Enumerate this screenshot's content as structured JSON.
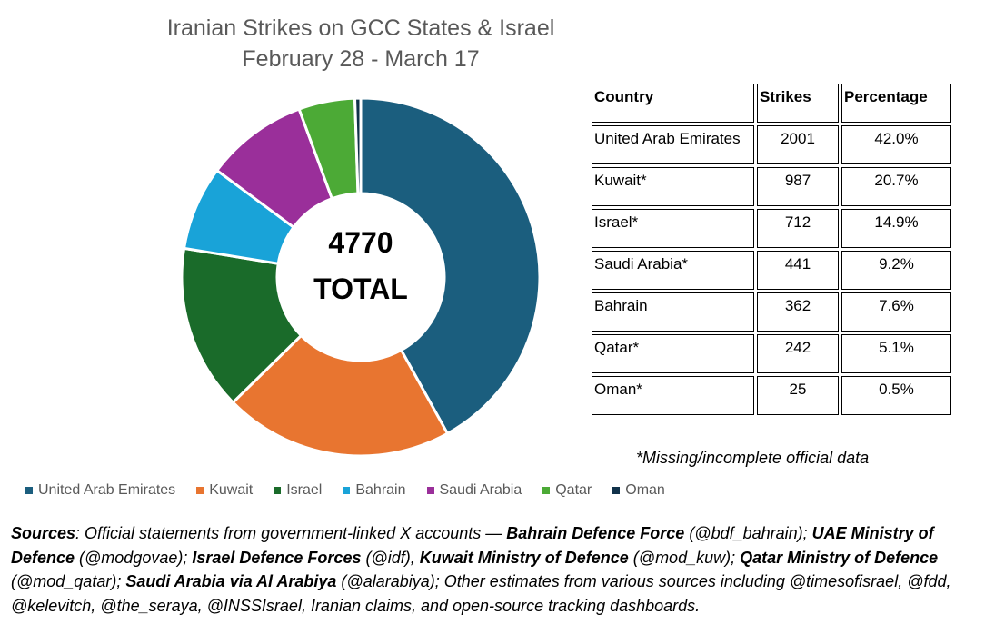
{
  "chart_data": {
    "type": "donut",
    "title": "Iranian Strikes on GCC States & Israel",
    "subtitle": "February 28 - March 17",
    "center_value": "4770",
    "center_label": "TOTAL",
    "categories": [
      "United Arab Emirates",
      "Kuwait",
      "Israel",
      "Bahrain",
      "Saudi Arabia",
      "Qatar",
      "Oman"
    ],
    "values": [
      2001,
      987,
      712,
      362,
      441,
      242,
      25
    ],
    "colors": [
      "#1b5e7e",
      "#e87530",
      "#1a6b2a",
      "#19a3d8",
      "#9a2f9a",
      "#4caa36",
      "#10324a"
    ],
    "legend_position": "bottom"
  },
  "table": {
    "headers": [
      "Country",
      "Strikes",
      "Percentage"
    ],
    "rows": [
      [
        "United Arab Emirates",
        "2001",
        "42.0%"
      ],
      [
        "Kuwait*",
        "987",
        "20.7%"
      ],
      [
        "Israel*",
        "712",
        "14.9%"
      ],
      [
        "Saudi Arabia*",
        "441",
        "9.2%"
      ],
      [
        "Bahrain",
        "362",
        "7.6%"
      ],
      [
        "Qatar*",
        "242",
        "5.1%"
      ],
      [
        "Oman*",
        "25",
        "0.5%"
      ]
    ]
  },
  "footnote": "*Missing/incomplete official data",
  "sources": [
    {
      "text": "Sources",
      "bold": true
    },
    {
      "text": ": Official statements from government-linked X accounts — ",
      "bold": false
    },
    {
      "text": "Bahrain Defence Force",
      "bold": true
    },
    {
      "text": " (@bdf_bahrain); ",
      "bold": false
    },
    {
      "text": "UAE Ministry of Defence",
      "bold": true
    },
    {
      "text": " (@modgovae); ",
      "bold": false
    },
    {
      "text": "Israel Defence Forces",
      "bold": true
    },
    {
      "text": " (@idf), ",
      "bold": false
    },
    {
      "text": "Kuwait Ministry of Defence",
      "bold": true
    },
    {
      "text": " (@mod_kuw); ",
      "bold": false
    },
    {
      "text": "Qatar Ministry of Defence",
      "bold": true
    },
    {
      "text": " (@mod_qatar); ",
      "bold": false
    },
    {
      "text": "Saudi Arabia via Al Arabiya",
      "bold": true
    },
    {
      "text": " (@alarabiya); Other estimates from various sources including @timesofisrael, @fdd, @kelevitch, @the_seraya, @INSSIsrael, Iranian claims, and open-source tracking dashboards.",
      "bold": false
    }
  ]
}
